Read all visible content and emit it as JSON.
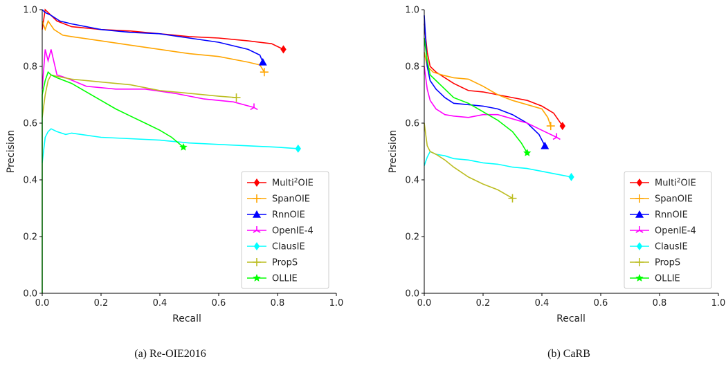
{
  "chart_data": [
    {
      "type": "line",
      "caption": "(a) Re-OIE2016",
      "xlabel": "Recall",
      "ylabel": "Precision",
      "xlim": [
        0,
        1
      ],
      "ylim": [
        0,
        1
      ],
      "xticks": [
        "0.0",
        "0.2",
        "0.4",
        "0.6",
        "0.8",
        "1.0"
      ],
      "yticks": [
        "0.0",
        "0.2",
        "0.4",
        "0.6",
        "0.8",
        "1.0"
      ],
      "grid": false,
      "legend_position": "lower-right",
      "series": [
        {
          "name": "Multi²OIE",
          "name_base": "Multi",
          "name_sup": "2",
          "name_rest": "OIE",
          "color": "#ff0000",
          "marker": "diamond",
          "points": [
            [
              0.0,
              0.93
            ],
            [
              0.01,
              1.0
            ],
            [
              0.02,
              0.99
            ],
            [
              0.05,
              0.96
            ],
            [
              0.1,
              0.94
            ],
            [
              0.2,
              0.93
            ],
            [
              0.3,
              0.925
            ],
            [
              0.4,
              0.915
            ],
            [
              0.5,
              0.905
            ],
            [
              0.6,
              0.9
            ],
            [
              0.7,
              0.89
            ],
            [
              0.78,
              0.88
            ],
            [
              0.82,
              0.86
            ]
          ]
        },
        {
          "name": "SpanOIE",
          "color": "#ffa500",
          "marker": "plus",
          "points": [
            [
              0.0,
              0.96
            ],
            [
              0.01,
              0.93
            ],
            [
              0.02,
              0.96
            ],
            [
              0.04,
              0.93
            ],
            [
              0.07,
              0.91
            ],
            [
              0.1,
              0.905
            ],
            [
              0.2,
              0.89
            ],
            [
              0.3,
              0.875
            ],
            [
              0.4,
              0.86
            ],
            [
              0.5,
              0.845
            ],
            [
              0.6,
              0.835
            ],
            [
              0.7,
              0.815
            ],
            [
              0.74,
              0.805
            ],
            [
              0.755,
              0.78
            ]
          ]
        },
        {
          "name": "RnnOIE",
          "color": "#0000ff",
          "marker": "triangle",
          "points": [
            [
              0.0,
              1.0
            ],
            [
              0.01,
              0.99
            ],
            [
              0.03,
              0.98
            ],
            [
              0.06,
              0.96
            ],
            [
              0.1,
              0.95
            ],
            [
              0.2,
              0.93
            ],
            [
              0.3,
              0.92
            ],
            [
              0.4,
              0.915
            ],
            [
              0.5,
              0.9
            ],
            [
              0.6,
              0.885
            ],
            [
              0.7,
              0.86
            ],
            [
              0.74,
              0.84
            ],
            [
              0.75,
              0.815
            ]
          ]
        },
        {
          "name": "OpenIE-4",
          "color": "#ff00ff",
          "marker": "star3",
          "points": [
            [
              0.0,
              0.72
            ],
            [
              0.01,
              0.86
            ],
            [
              0.02,
              0.82
            ],
            [
              0.03,
              0.86
            ],
            [
              0.05,
              0.77
            ],
            [
              0.08,
              0.76
            ],
            [
              0.15,
              0.73
            ],
            [
              0.25,
              0.72
            ],
            [
              0.35,
              0.72
            ],
            [
              0.45,
              0.705
            ],
            [
              0.55,
              0.685
            ],
            [
              0.65,
              0.675
            ],
            [
              0.72,
              0.655
            ]
          ]
        },
        {
          "name": "ClausIE",
          "color": "#00ffff",
          "marker": "diamond",
          "points": [
            [
              0.0,
              0.46
            ],
            [
              0.01,
              0.55
            ],
            [
              0.02,
              0.57
            ],
            [
              0.03,
              0.58
            ],
            [
              0.05,
              0.57
            ],
            [
              0.08,
              0.56
            ],
            [
              0.1,
              0.565
            ],
            [
              0.2,
              0.55
            ],
            [
              0.3,
              0.545
            ],
            [
              0.4,
              0.54
            ],
            [
              0.5,
              0.53
            ],
            [
              0.6,
              0.525
            ],
            [
              0.7,
              0.52
            ],
            [
              0.8,
              0.515
            ],
            [
              0.87,
              0.51
            ]
          ]
        },
        {
          "name": "PropS",
          "color": "#bcbd22",
          "marker": "plus",
          "points": [
            [
              0.0,
              0.62
            ],
            [
              0.01,
              0.7
            ],
            [
              0.02,
              0.75
            ],
            [
              0.03,
              0.77
            ],
            [
              0.05,
              0.765
            ],
            [
              0.1,
              0.755
            ],
            [
              0.2,
              0.745
            ],
            [
              0.3,
              0.735
            ],
            [
              0.4,
              0.715
            ],
            [
              0.5,
              0.705
            ],
            [
              0.6,
              0.695
            ],
            [
              0.66,
              0.69
            ]
          ]
        },
        {
          "name": "OLLIE",
          "color": "#00ff00",
          "marker": "star",
          "points": [
            [
              0.0,
              0.0
            ],
            [
              0.0,
              0.7
            ],
            [
              0.01,
              0.75
            ],
            [
              0.02,
              0.78
            ],
            [
              0.03,
              0.77
            ],
            [
              0.05,
              0.76
            ],
            [
              0.1,
              0.74
            ],
            [
              0.15,
              0.71
            ],
            [
              0.2,
              0.68
            ],
            [
              0.25,
              0.65
            ],
            [
              0.3,
              0.625
            ],
            [
              0.35,
              0.6
            ],
            [
              0.4,
              0.575
            ],
            [
              0.44,
              0.55
            ],
            [
              0.48,
              0.515
            ]
          ]
        }
      ]
    },
    {
      "type": "line",
      "caption": "(b) CaRB",
      "xlabel": "Recall",
      "ylabel": "Precision",
      "xlim": [
        0,
        1
      ],
      "ylim": [
        0,
        1
      ],
      "xticks": [
        "0.0",
        "0.2",
        "0.4",
        "0.6",
        "0.8",
        "1.0"
      ],
      "yticks": [
        "0.0",
        "0.2",
        "0.4",
        "0.6",
        "0.8",
        "1.0"
      ],
      "grid": false,
      "legend_position": "lower-right",
      "series": [
        {
          "name": "Multi²OIE",
          "name_base": "Multi",
          "name_sup": "2",
          "name_rest": "OIE",
          "color": "#ff0000",
          "marker": "diamond",
          "points": [
            [
              0.0,
              0.95
            ],
            [
              0.01,
              0.85
            ],
            [
              0.02,
              0.8
            ],
            [
              0.04,
              0.78
            ],
            [
              0.07,
              0.76
            ],
            [
              0.1,
              0.74
            ],
            [
              0.15,
              0.715
            ],
            [
              0.2,
              0.71
            ],
            [
              0.25,
              0.7
            ],
            [
              0.3,
              0.69
            ],
            [
              0.35,
              0.68
            ],
            [
              0.4,
              0.66
            ],
            [
              0.44,
              0.635
            ],
            [
              0.47,
              0.59
            ]
          ]
        },
        {
          "name": "SpanOIE",
          "color": "#ffa500",
          "marker": "plus",
          "points": [
            [
              0.0,
              0.85
            ],
            [
              0.01,
              0.8
            ],
            [
              0.03,
              0.78
            ],
            [
              0.06,
              0.77
            ],
            [
              0.1,
              0.76
            ],
            [
              0.15,
              0.755
            ],
            [
              0.2,
              0.73
            ],
            [
              0.25,
              0.7
            ],
            [
              0.3,
              0.68
            ],
            [
              0.35,
              0.665
            ],
            [
              0.4,
              0.65
            ],
            [
              0.42,
              0.62
            ],
            [
              0.43,
              0.59
            ]
          ]
        },
        {
          "name": "RnnOIE",
          "color": "#0000ff",
          "marker": "triangle",
          "points": [
            [
              0.0,
              0.98
            ],
            [
              0.01,
              0.8
            ],
            [
              0.02,
              0.75
            ],
            [
              0.04,
              0.72
            ],
            [
              0.07,
              0.69
            ],
            [
              0.1,
              0.67
            ],
            [
              0.15,
              0.665
            ],
            [
              0.2,
              0.66
            ],
            [
              0.25,
              0.65
            ],
            [
              0.3,
              0.63
            ],
            [
              0.35,
              0.6
            ],
            [
              0.39,
              0.56
            ],
            [
              0.41,
              0.52
            ]
          ]
        },
        {
          "name": "OpenIE-4",
          "color": "#ff00ff",
          "marker": "star3",
          "points": [
            [
              0.0,
              0.8
            ],
            [
              0.01,
              0.72
            ],
            [
              0.02,
              0.68
            ],
            [
              0.04,
              0.65
            ],
            [
              0.07,
              0.63
            ],
            [
              0.1,
              0.625
            ],
            [
              0.15,
              0.62
            ],
            [
              0.2,
              0.63
            ],
            [
              0.25,
              0.63
            ],
            [
              0.3,
              0.615
            ],
            [
              0.35,
              0.6
            ],
            [
              0.4,
              0.575
            ],
            [
              0.45,
              0.55
            ]
          ]
        },
        {
          "name": "ClausIE",
          "color": "#00ffff",
          "marker": "diamond",
          "points": [
            [
              0.0,
              0.45
            ],
            [
              0.01,
              0.48
            ],
            [
              0.02,
              0.5
            ],
            [
              0.04,
              0.49
            ],
            [
              0.07,
              0.485
            ],
            [
              0.1,
              0.475
            ],
            [
              0.15,
              0.47
            ],
            [
              0.2,
              0.46
            ],
            [
              0.25,
              0.455
            ],
            [
              0.3,
              0.445
            ],
            [
              0.35,
              0.44
            ],
            [
              0.4,
              0.43
            ],
            [
              0.45,
              0.42
            ],
            [
              0.5,
              0.41
            ]
          ]
        },
        {
          "name": "PropS",
          "color": "#bcbd22",
          "marker": "plus",
          "points": [
            [
              0.0,
              0.6
            ],
            [
              0.01,
              0.52
            ],
            [
              0.02,
              0.5
            ],
            [
              0.04,
              0.49
            ],
            [
              0.07,
              0.47
            ],
            [
              0.1,
              0.445
            ],
            [
              0.15,
              0.41
            ],
            [
              0.2,
              0.385
            ],
            [
              0.25,
              0.365
            ],
            [
              0.3,
              0.335
            ]
          ]
        },
        {
          "name": "OLLIE",
          "color": "#00ff00",
          "marker": "star",
          "points": [
            [
              0.0,
              0.9
            ],
            [
              0.01,
              0.82
            ],
            [
              0.02,
              0.77
            ],
            [
              0.04,
              0.75
            ],
            [
              0.07,
              0.72
            ],
            [
              0.1,
              0.69
            ],
            [
              0.15,
              0.67
            ],
            [
              0.2,
              0.64
            ],
            [
              0.25,
              0.61
            ],
            [
              0.3,
              0.57
            ],
            [
              0.33,
              0.53
            ],
            [
              0.35,
              0.495
            ]
          ]
        }
      ]
    }
  ]
}
